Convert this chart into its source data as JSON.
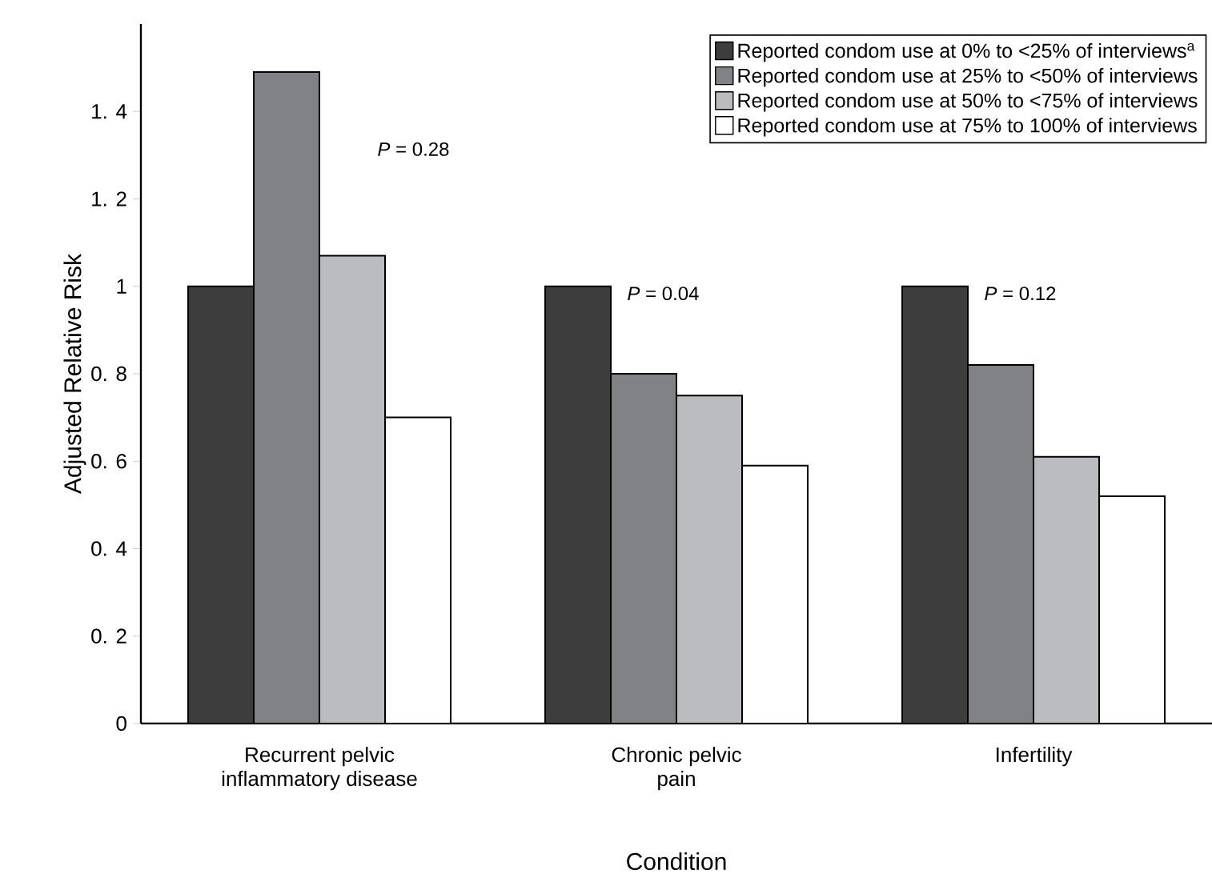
{
  "chart_data": {
    "type": "bar",
    "xlabel": "Condition",
    "ylabel": "Adjusted Relative Risk",
    "categories": [
      "Recurrent pelvic inflammatory disease",
      "Chronic pelvic pain",
      "Infertility"
    ],
    "series": [
      {
        "name": "Reported condom use at 0% to <25% of interviews$^{a}$",
        "color": "#3d3d3d",
        "values": [
          1.0,
          1.0,
          1.0
        ]
      },
      {
        "name": "Reported condom use at 25% to <50% of interviews",
        "color": "#818286",
        "values": [
          1.49,
          0.8,
          0.82
        ]
      },
      {
        "name": "Reported condom use at 50% to <75% of interviews",
        "color": "#bbbcc0",
        "values": [
          1.07,
          0.75,
          0.61
        ]
      },
      {
        "name": "Reported condom use at 75% to 100% of interviews",
        "color": "#ffffff",
        "values": [
          0.7,
          0.59,
          0.52
        ]
      }
    ],
    "ylim": [
      0,
      1.6
    ],
    "yticks": [
      0,
      {
        "value": 0.2,
        "label": "0. 2"
      },
      {
        "value": 0.4,
        "label": "0. 4"
      },
      {
        "value": 0.6,
        "label": "0. 6"
      },
      {
        "value": 0.8,
        "label": "0. 8"
      },
      1,
      {
        "value": 1.2,
        "label": "1. 2"
      },
      {
        "value": 1.4,
        "label": "1. 4"
      }
    ],
    "annotations": [
      "*P* = 0.28",
      "*P* = 0.04",
      "*P* = 0.12"
    ],
    "legend": "top right",
    "grid": false
  }
}
